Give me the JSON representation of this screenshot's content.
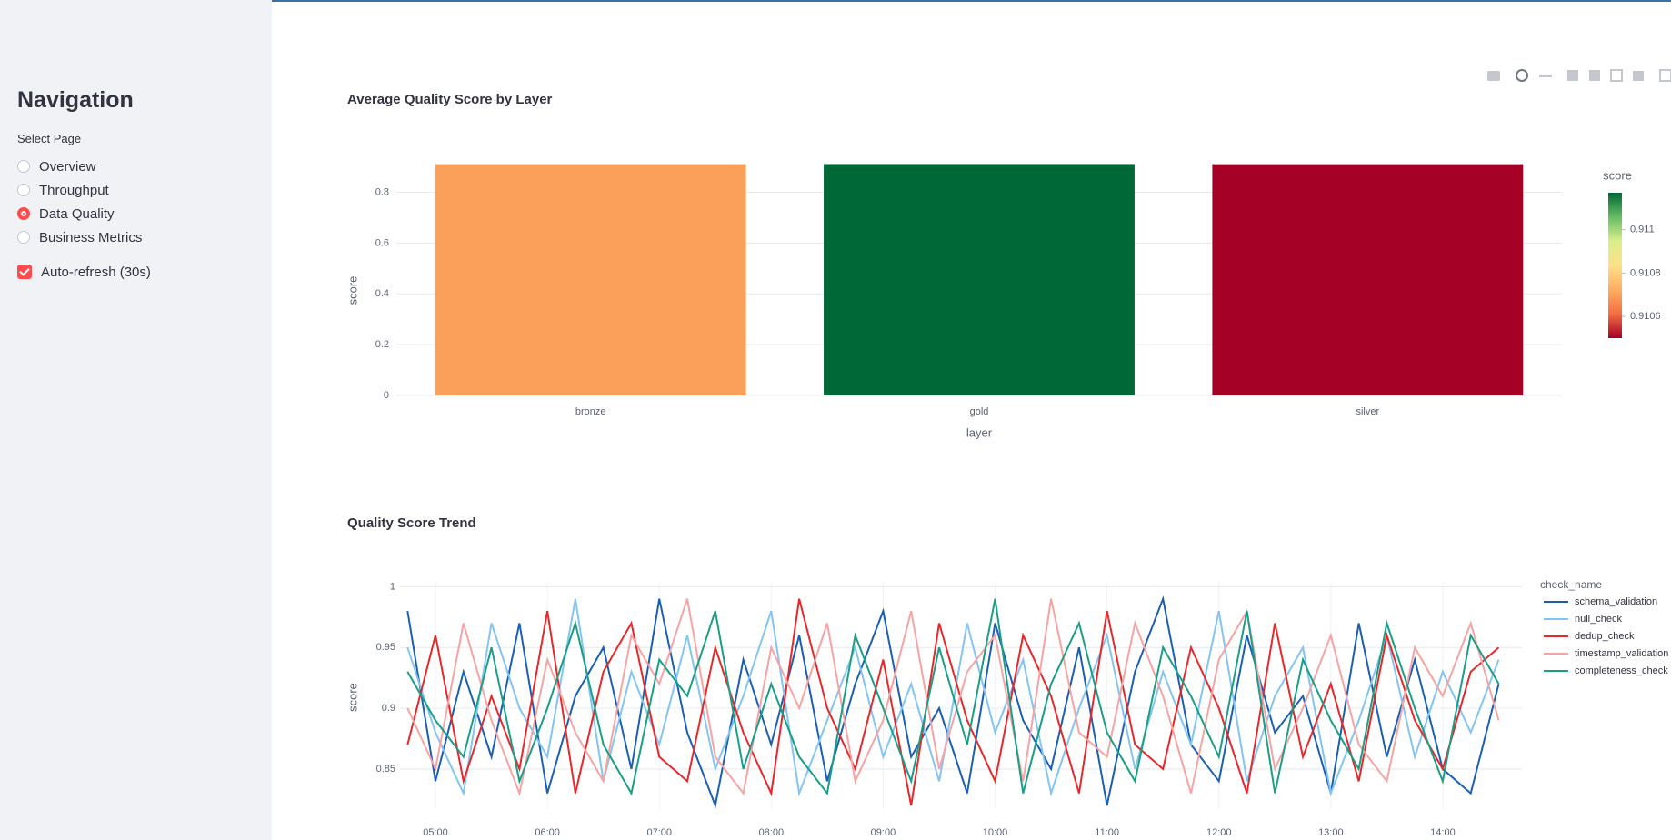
{
  "sidebar": {
    "title": "Navigation",
    "label": "Select Page",
    "options": [
      "Overview",
      "Throughput",
      "Data Quality",
      "Business Metrics"
    ],
    "selected": 2,
    "checkbox": "Auto-refresh (30s)",
    "checked": true
  },
  "chart_data": [
    {
      "type": "bar",
      "title": "Average Quality Score by Layer",
      "xlabel": "layer",
      "ylabel": "score",
      "categories": [
        "bronze",
        "gold",
        "silver"
      ],
      "values": [
        0.9107,
        0.9111,
        0.9105
      ],
      "colors": [
        "#fba05b",
        "#006837",
        "#a50026"
      ],
      "ylim": [
        0,
        0.97
      ],
      "yticks": [
        0,
        0.2,
        0.4,
        0.6,
        0.8
      ],
      "grid": true,
      "colorbar": {
        "title": "score",
        "clim": [
          0.9105,
          0.91117
        ],
        "ticks": [
          0.9106,
          0.9108,
          0.911
        ],
        "colorscale": [
          "#a50026",
          "#f46d43",
          "#fdae61",
          "#fee08b",
          "#d9ef8b",
          "#66bd63",
          "#006837"
        ]
      }
    },
    {
      "type": "line",
      "title": "Quality Score Trend",
      "ylabel": "score",
      "legend_title": "check_name",
      "x": [
        "04:45",
        "05:00",
        "05:15",
        "05:30",
        "05:45",
        "06:00",
        "06:15",
        "06:30",
        "06:45",
        "07:00",
        "07:15",
        "07:30",
        "07:45",
        "08:00",
        "08:15",
        "08:30",
        "08:45",
        "09:00",
        "09:15",
        "09:30",
        "09:45",
        "10:00",
        "10:15",
        "10:30",
        "10:45",
        "11:00",
        "11:15",
        "11:30",
        "11:45",
        "12:00",
        "12:15",
        "12:30",
        "12:45",
        "13:00",
        "13:15",
        "13:30",
        "13:45",
        "14:00",
        "14:15",
        "14:30"
      ],
      "xlim": [
        "04:40",
        "14:40"
      ],
      "xticks": [
        "05:00",
        "06:00",
        "07:00",
        "08:00",
        "09:00",
        "10:00",
        "11:00",
        "12:00",
        "13:00",
        "14:00"
      ],
      "ylim": [
        0.817,
        1.004
      ],
      "yticks": [
        0.85,
        0.9,
        0.95,
        1
      ],
      "grid": true,
      "legend": "right",
      "series": [
        {
          "name": "schema_validation",
          "color": "#1a5fb4",
          "values": [
            0.98,
            0.84,
            0.93,
            0.86,
            0.97,
            0.83,
            0.91,
            0.95,
            0.85,
            0.99,
            0.88,
            0.82,
            0.94,
            0.87,
            0.96,
            0.84,
            0.92,
            0.98,
            0.86,
            0.9,
            0.83,
            0.97,
            0.89,
            0.85,
            0.95,
            0.82,
            0.93,
            0.99,
            0.87,
            0.84,
            0.96,
            0.88,
            0.91,
            0.83,
            0.97,
            0.86,
            0.94,
            0.85,
            0.83,
            0.92
          ]
        },
        {
          "name": "null_check",
          "color": "#83c4f2",
          "values": [
            0.95,
            0.88,
            0.83,
            0.97,
            0.9,
            0.86,
            0.99,
            0.84,
            0.93,
            0.87,
            0.96,
            0.85,
            0.91,
            0.98,
            0.83,
            0.89,
            0.95,
            0.86,
            0.92,
            0.84,
            0.97,
            0.88,
            0.94,
            0.83,
            0.9,
            0.96,
            0.85,
            0.93,
            0.87,
            0.98,
            0.84,
            0.91,
            0.95,
            0.83,
            0.89,
            0.96,
            0.86,
            0.93,
            0.88,
            0.94
          ]
        },
        {
          "name": "dedup_check",
          "color": "#e8272a",
          "values": [
            0.87,
            0.96,
            0.84,
            0.91,
            0.85,
            0.98,
            0.83,
            0.93,
            0.97,
            0.86,
            0.84,
            0.95,
            0.88,
            0.83,
            0.99,
            0.9,
            0.85,
            0.94,
            0.82,
            0.97,
            0.89,
            0.84,
            0.96,
            0.91,
            0.83,
            0.98,
            0.87,
            0.85,
            0.95,
            0.9,
            0.83,
            0.97,
            0.86,
            0.92,
            0.84,
            0.96,
            0.89,
            0.85,
            0.93,
            0.95
          ]
        },
        {
          "name": "timestamp_validation",
          "color": "#f7a3a3",
          "values": [
            0.9,
            0.85,
            0.97,
            0.89,
            0.83,
            0.94,
            0.88,
            0.84,
            0.96,
            0.92,
            0.99,
            0.86,
            0.83,
            0.95,
            0.9,
            0.97,
            0.84,
            0.89,
            0.98,
            0.85,
            0.93,
            0.96,
            0.84,
            0.99,
            0.88,
            0.86,
            0.97,
            0.91,
            0.83,
            0.94,
            0.98,
            0.85,
            0.9,
            0.96,
            0.87,
            0.84,
            0.95,
            0.91,
            0.97,
            0.89
          ]
        },
        {
          "name": "completeness_check",
          "color": "#1b9e86",
          "values": [
            0.93,
            0.89,
            0.86,
            0.95,
            0.84,
            0.9,
            0.97,
            0.87,
            0.83,
            0.94,
            0.91,
            0.98,
            0.85,
            0.92,
            0.86,
            0.83,
            0.96,
            0.9,
            0.84,
            0.95,
            0.87,
            0.99,
            0.83,
            0.92,
            0.97,
            0.88,
            0.84,
            0.95,
            0.91,
            0.86,
            0.98,
            0.83,
            0.94,
            0.89,
            0.85,
            0.97,
            0.9,
            0.84,
            0.96,
            0.92
          ]
        }
      ]
    }
  ]
}
